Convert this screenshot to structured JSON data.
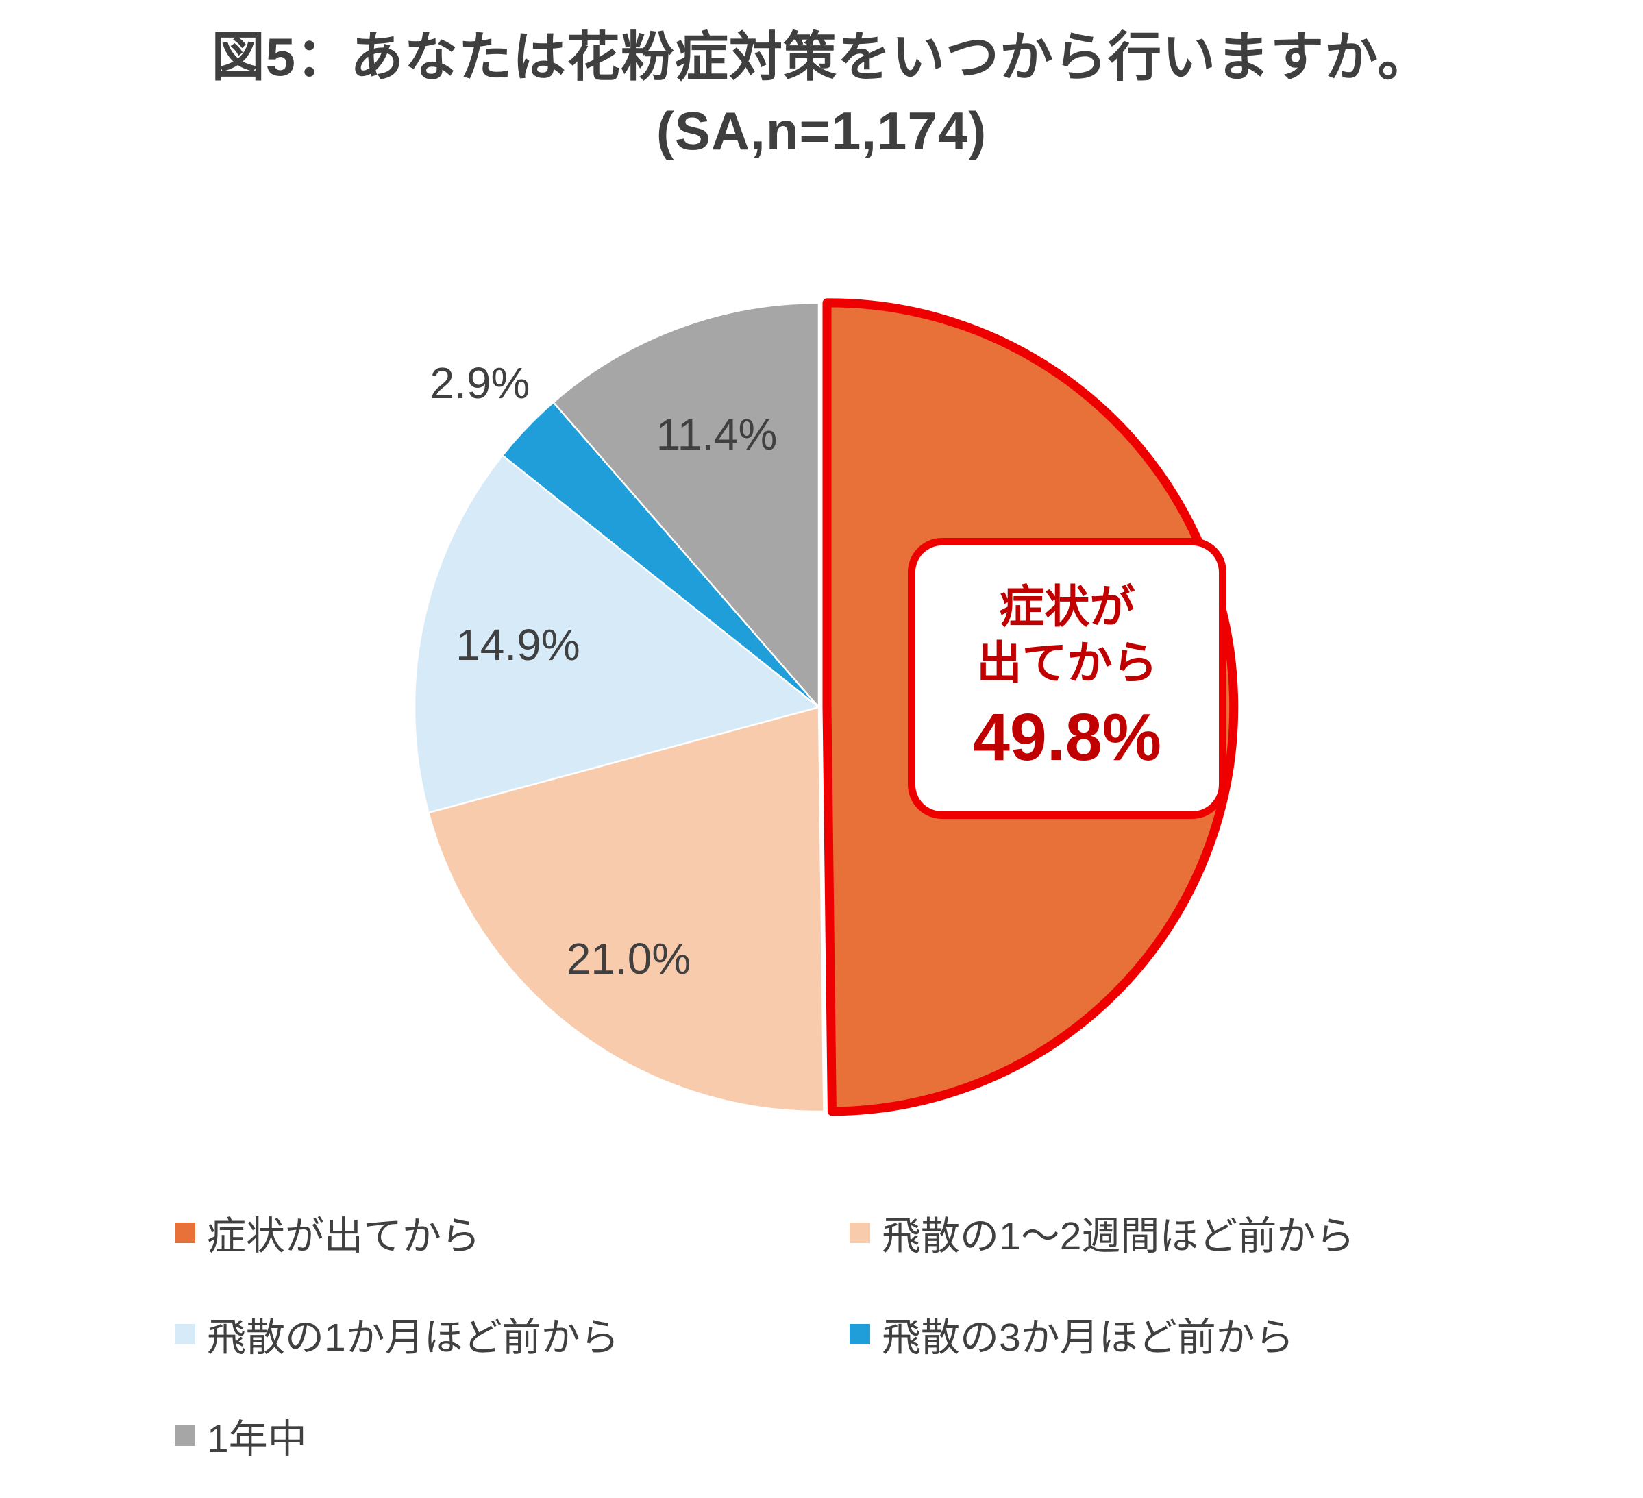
{
  "title": {
    "line1": "図5：あなたは花粉症対策をいつから行いますか。",
    "line2": "(SA,n=1,174)"
  },
  "chart_data": {
    "type": "pie",
    "title": "図5：あなたは花粉症対策をいつから行いますか。(SA,n=1,174)",
    "start_angle_deg": 0,
    "direction": "clockwise",
    "legend_position": "bottom",
    "emphasis_outline_color": "#ee0000",
    "segments": [
      {
        "label": "症状が出てから",
        "value": 49.8,
        "value_label": "49.8%",
        "color": "#e8713a",
        "emphasized": true,
        "label_r": null
      },
      {
        "label": "飛散の1～2週間ほど前から",
        "value": 21.0,
        "value_label": "21.0%",
        "color": "#f8cbad",
        "emphasized": false,
        "label_r": 0.78
      },
      {
        "label": "飛散の1か月ほど前から",
        "value": 14.9,
        "value_label": "14.9%",
        "color": "#d6eaf8",
        "emphasized": false,
        "label_r": 0.76
      },
      {
        "label": "飛散の3か月ほど前から",
        "value": 2.9,
        "value_label": "2.9%",
        "color": "#1f9ed9",
        "emphasized": false,
        "label_r": 1.16
      },
      {
        "label": "1年中",
        "value": 11.4,
        "value_label": "11.4%",
        "color": "#a6a6a6",
        "emphasized": false,
        "label_r": 0.72
      }
    ],
    "callout": {
      "lines": [
        "症状が",
        "出てから",
        "49.8%"
      ],
      "text_color": "#c00000",
      "border_color": "#ee0000"
    }
  }
}
